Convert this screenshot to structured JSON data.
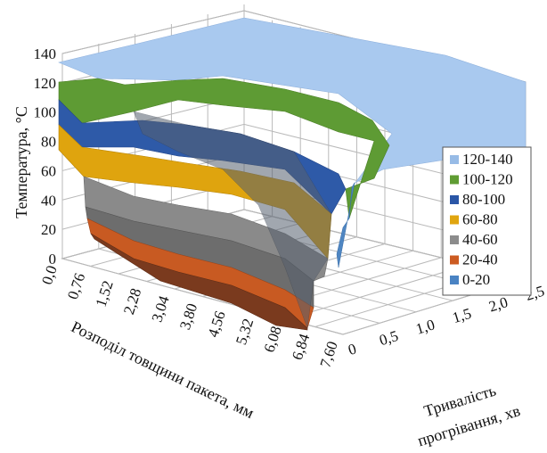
{
  "chart_data": {
    "type": "surface3d",
    "z_axis": {
      "label": "Температура, °C",
      "ticks": [
        "0",
        "20",
        "40",
        "60",
        "80",
        "100",
        "120",
        "140"
      ],
      "range": [
        0,
        140
      ]
    },
    "x_axis": {
      "label": "Розподіл товщини пакета, мм",
      "ticks": [
        "0,0",
        "0,76",
        "1,52",
        "2,28",
        "3,04",
        "3,80",
        "4,56",
        "5,32",
        "6,08",
        "6,84",
        "7,60"
      ]
    },
    "y_axis": {
      "label_line1": "Тривалість",
      "label_line2": "прогрівання, хв",
      "ticks": [
        "0",
        "0,5",
        "1,0",
        "1,5",
        "2,0",
        "2,5"
      ]
    },
    "legend": {
      "position": "right",
      "entries": [
        {
          "label": "120-140",
          "color": "#97bbe6"
        },
        {
          "label": "100-120",
          "color": "#5f9c33"
        },
        {
          "label": "80-100",
          "color": "#2a56a6"
        },
        {
          "label": "60-80",
          "color": "#e0a50f"
        },
        {
          "label": "40-60",
          "color": "#8c8c8c"
        },
        {
          "label": "20-40",
          "color": "#cc5b22"
        },
        {
          "label": "0-20",
          "color": "#4a83c3"
        }
      ]
    },
    "grid": true
  }
}
